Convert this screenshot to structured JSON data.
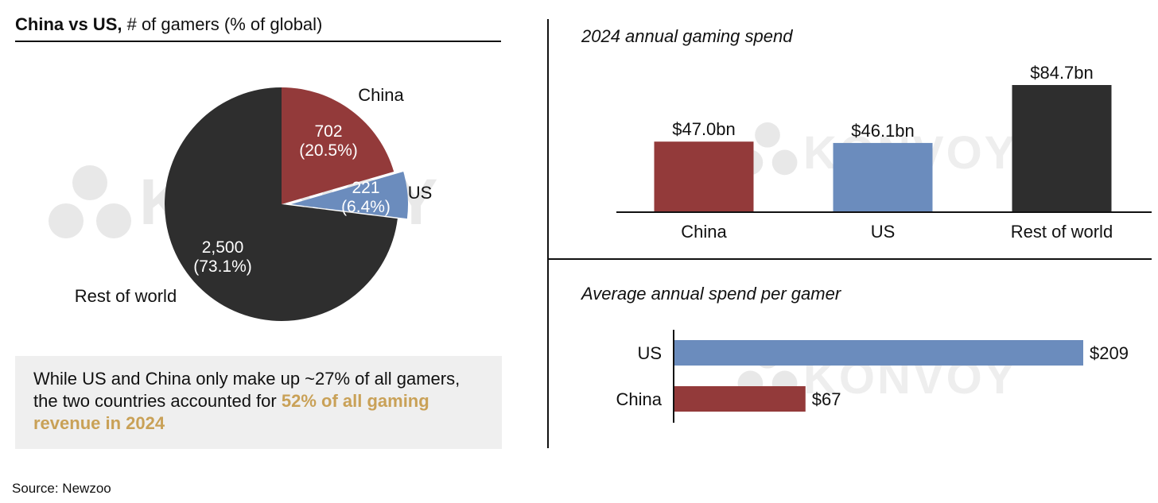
{
  "pie": {
    "title_bold": "China vs US,",
    "title_rest": " # of gamers (% of global)"
  },
  "bar": {
    "title": "2024 annual gaming spend"
  },
  "hbar": {
    "title": "Average annual spend per gamer"
  },
  "callout": {
    "text_plain": "While US and China only make up ~27% of all gamers, the two countries accounted for ",
    "text_highlight": "52% of all gaming revenue in 2024",
    "highlight_color": "#c9a157"
  },
  "watermark": "KONVOY",
  "source": "Source: Newzoo",
  "chart_data": [
    {
      "type": "pie",
      "title": "China vs US, # of gamers (% of global)",
      "slices": [
        {
          "label": "China",
          "value": 702,
          "value_label": "702",
          "pct_label": "(20.5%)",
          "color": "#933a3a"
        },
        {
          "label": "US",
          "value": 221,
          "value_label": "221",
          "pct_label": "(6.4%)",
          "color": "#6b8cbd"
        },
        {
          "label": "Rest of world",
          "value": 2500,
          "value_label": "2,500",
          "pct_label": "(73.1%)",
          "color": "#2e2e2e"
        }
      ]
    },
    {
      "type": "bar",
      "title": "2024 annual gaming spend",
      "categories": [
        "China",
        "US",
        "Rest of world"
      ],
      "values": [
        47.0,
        46.1,
        84.7
      ],
      "value_labels": [
        "$47.0bn",
        "$46.1bn",
        "$84.7bn"
      ],
      "colors": [
        "#933a3a",
        "#6b8cbd",
        "#2e2e2e"
      ],
      "ylabel": "",
      "ylim": [
        0,
        84.7
      ]
    },
    {
      "type": "bar",
      "orientation": "horizontal",
      "title": "Average annual spend per gamer",
      "categories": [
        "US",
        "China"
      ],
      "values": [
        209,
        67
      ],
      "value_labels": [
        "$209",
        "$67"
      ],
      "colors": [
        "#6b8cbd",
        "#933a3a"
      ],
      "xlim": [
        0,
        209
      ]
    }
  ]
}
